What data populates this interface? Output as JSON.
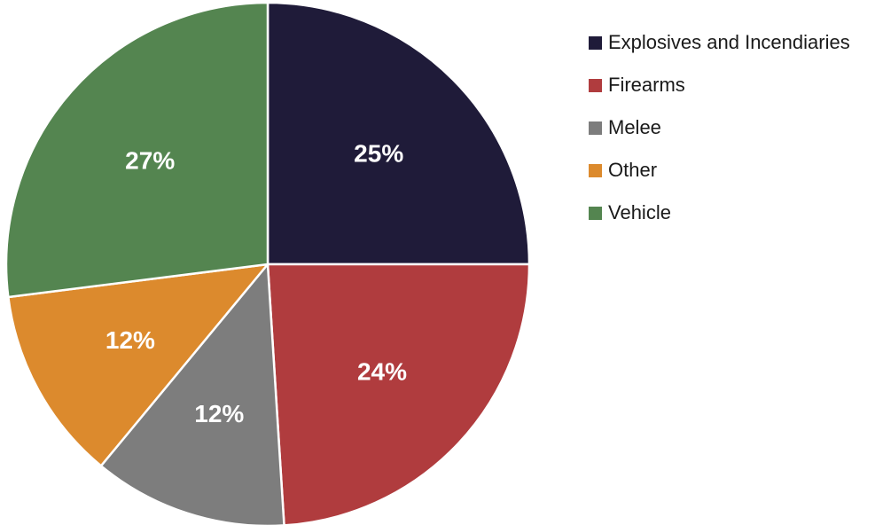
{
  "chart_data": {
    "type": "pie",
    "slices": [
      {
        "label": "Explosives and Incendiaries",
        "value": 25,
        "display": "25%",
        "color": "#1f1b39"
      },
      {
        "label": "Firearms",
        "value": 24,
        "display": "24%",
        "color": "#b03c3e"
      },
      {
        "label": "Melee",
        "value": 12,
        "display": "12%",
        "color": "#7d7d7d"
      },
      {
        "label": "Other",
        "value": 12,
        "display": "12%",
        "color": "#dc8a2d"
      },
      {
        "label": "Vehicle",
        "value": 27,
        "display": "27%",
        "color": "#548550"
      }
    ],
    "legend_position": "right",
    "start_angle": "12 o'clock",
    "direction": "clockwise"
  }
}
